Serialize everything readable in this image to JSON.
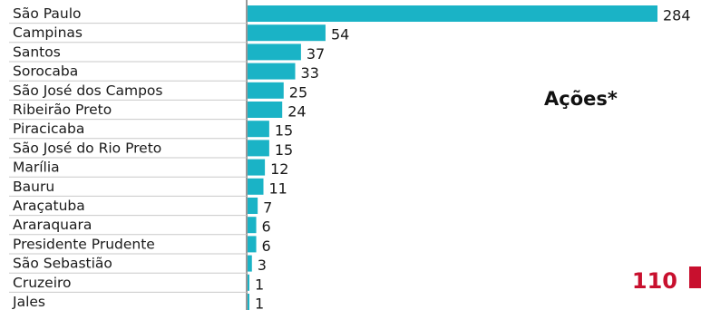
{
  "chart_data": {
    "type": "bar",
    "orientation": "horizontal",
    "title": "Ações*",
    "categories": [
      "São Paulo",
      "Campinas",
      "Santos",
      "Sorocaba",
      "São José dos Campos",
      "Ribeirão Preto",
      "Piracicaba",
      "São José do Rio Preto",
      "Marília",
      "Bauru",
      "Araçatuba",
      "Araraquara",
      "Presidente Prudente",
      "São Sebastião",
      "Cruzeiro",
      "Jales"
    ],
    "values": [
      284,
      54,
      37,
      33,
      25,
      24,
      15,
      15,
      12,
      11,
      7,
      6,
      6,
      3,
      1,
      1
    ],
    "xlim": [
      0,
      284
    ],
    "grid": false,
    "legend": "none",
    "bar_color": "#1ab3c6"
  },
  "page_number": "110",
  "accent_color": "#c8102e"
}
